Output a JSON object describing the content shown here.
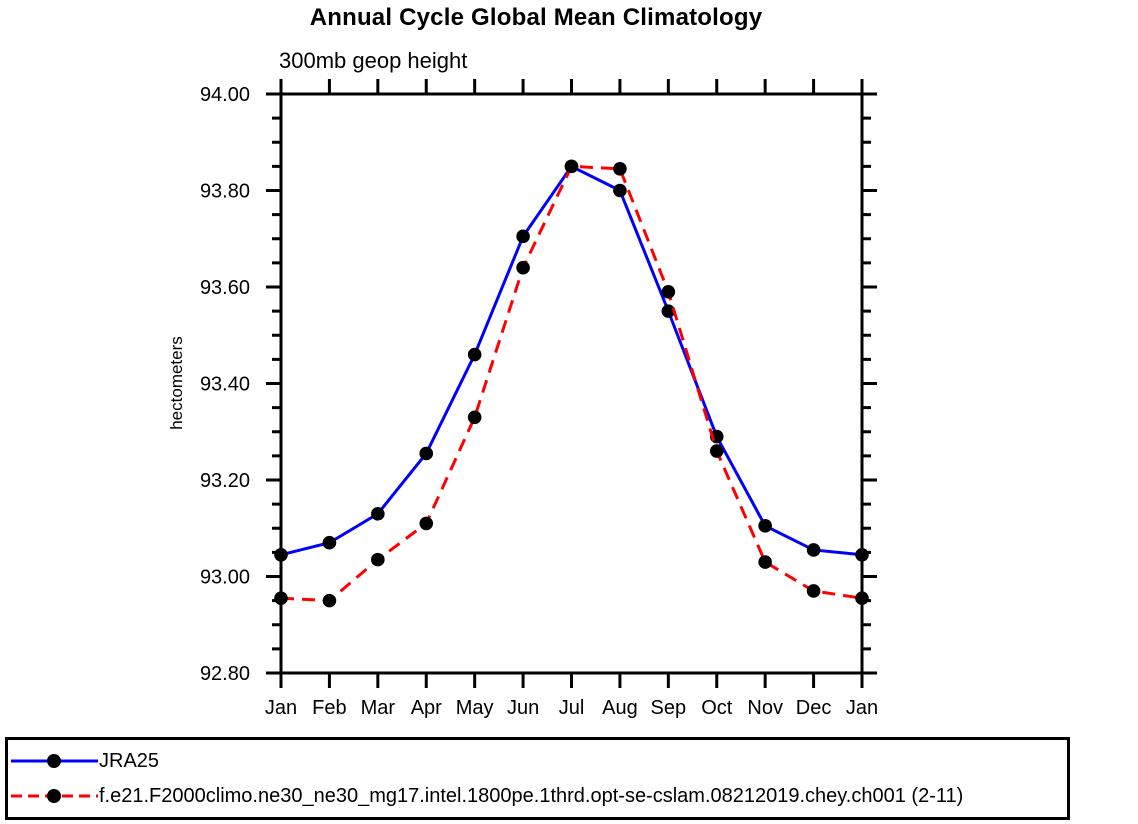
{
  "title": "Annual Cycle Global Mean Climatology",
  "subtitle": "300mb geop height",
  "y_axis": {
    "label": "hectometers",
    "min": 92.8,
    "max": 94.0,
    "major_step": 0.2,
    "minor_step": 0.05,
    "tick_decimals": 2
  },
  "x_axis": {
    "categories": [
      "Jan",
      "Feb",
      "Mar",
      "Apr",
      "May",
      "Jun",
      "Jul",
      "Aug",
      "Sep",
      "Oct",
      "Nov",
      "Dec",
      "Jan"
    ]
  },
  "chart_data": {
    "type": "line",
    "title": "Annual Cycle Global Mean Climatology",
    "subtitle": "300mb geop height",
    "xlabel": "",
    "ylabel": "hectometers",
    "ylim": [
      92.8,
      94.0
    ],
    "ytick_major": 0.2,
    "ytick_minor": 0.05,
    "grid": false,
    "legend_position": "bottom",
    "categories": [
      "Jan",
      "Feb",
      "Mar",
      "Apr",
      "May",
      "Jun",
      "Jul",
      "Aug",
      "Sep",
      "Oct",
      "Nov",
      "Dec",
      "Jan"
    ],
    "series": [
      {
        "id": "jra25",
        "name": "JRA25",
        "color": "#0000ff",
        "line_style": "solid",
        "marker": "circle",
        "marker_color": "#000000",
        "values": [
          93.045,
          93.07,
          93.13,
          93.255,
          93.46,
          93.705,
          93.85,
          93.8,
          93.55,
          93.29,
          93.105,
          93.055,
          93.045
        ]
      },
      {
        "id": "model-run",
        "name": "f.e21.F2000climo.ne30_ne30_mg17.intel.1800pe.1thrd.opt-se-cslam.08212019.chey.ch001 (2-11)",
        "color": "#ff0000",
        "line_style": "dashed",
        "marker": "circle",
        "marker_color": "#000000",
        "values": [
          92.955,
          92.95,
          93.035,
          93.11,
          93.33,
          93.64,
          93.85,
          93.845,
          93.59,
          93.26,
          93.03,
          92.97,
          92.955
        ]
      }
    ]
  },
  "colors": {
    "axis": "#000000",
    "text": "#000000",
    "background": "#ffffff",
    "series_1": "#0000ff",
    "series_2": "#ff0000",
    "marker": "#000000"
  }
}
